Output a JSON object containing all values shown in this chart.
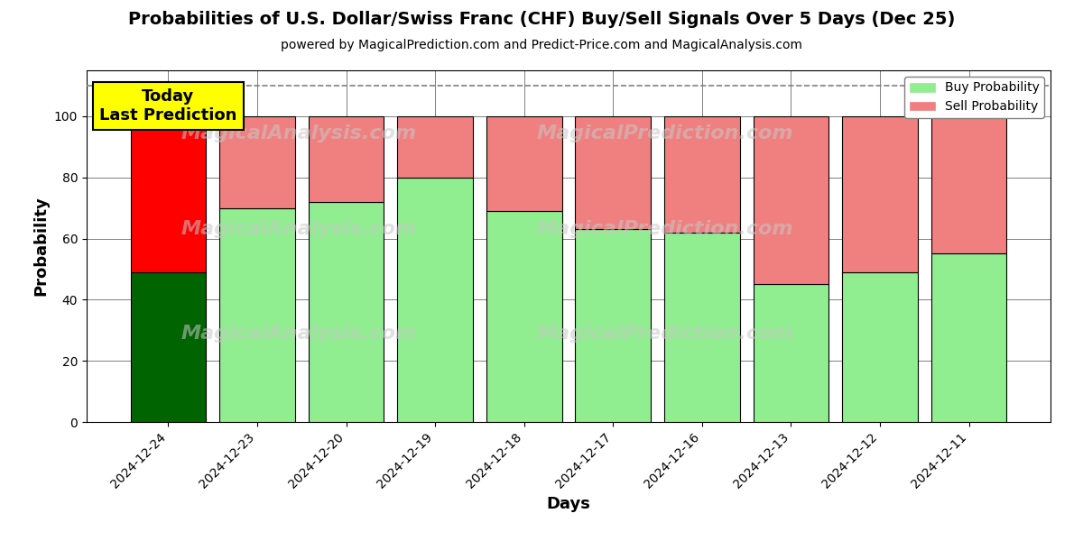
{
  "title": "Probabilities of U.S. Dollar/Swiss Franc (CHF) Buy/Sell Signals Over 5 Days (Dec 25)",
  "subtitle": "powered by MagicalPrediction.com and Predict-Price.com and MagicalAnalysis.com",
  "xlabel": "Days",
  "ylabel": "Probability",
  "categories": [
    "2024-12-24",
    "2024-12-23",
    "2024-12-20",
    "2024-12-19",
    "2024-12-18",
    "2024-12-17",
    "2024-12-16",
    "2024-12-13",
    "2024-12-12",
    "2024-12-11"
  ],
  "buy_values": [
    49,
    70,
    72,
    80,
    69,
    63,
    62,
    45,
    49,
    55
  ],
  "sell_values": [
    51,
    30,
    28,
    20,
    31,
    37,
    38,
    55,
    51,
    45
  ],
  "today_buy_color": "#006400",
  "today_sell_color": "#FF0000",
  "buy_color": "#90EE90",
  "sell_color": "#F08080",
  "today_label_bg": "#FFFF00",
  "dashed_line_y": 110,
  "ylim": [
    0,
    115
  ],
  "yticks": [
    0,
    20,
    40,
    60,
    80,
    100
  ],
  "figsize": [
    12,
    6
  ],
  "dpi": 100,
  "bar_width": 0.85,
  "watermark1": "MagicalAnalysis.com",
  "watermark2": "MagicalPrediction.com"
}
